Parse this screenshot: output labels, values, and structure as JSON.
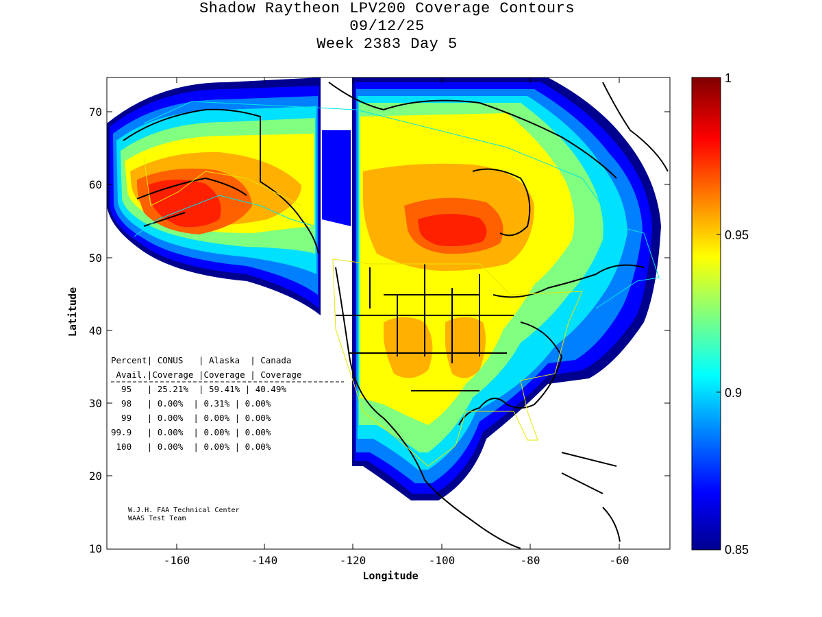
{
  "title": {
    "line1": "Shadow Raytheon LPV200 Coverage Contours",
    "line2": "09/12/25",
    "line3": "Week 2383 Day 5"
  },
  "axes": {
    "xlabel": "Longitude",
    "ylabel": "Latitude",
    "x_ticks": [
      "-160",
      "-140",
      "-120",
      "-100",
      "-80",
      "-60"
    ],
    "y_ticks": [
      "10",
      "20",
      "30",
      "40",
      "50",
      "60",
      "70"
    ]
  },
  "colorbar": {
    "labels": [
      "1",
      "0.95",
      "0.9",
      "0.85"
    ],
    "range": [
      0.85,
      1
    ]
  },
  "stats_table": {
    "header1": "Percent| CONUS   | Alaska  | Canada",
    "header2": " Avail.|Coverage |Coverage | Coverage",
    "rows": [
      "  95   | 25.21%  | 59.41% | 40.49%",
      "  98   | 0.00%  | 0.31% | 0.00%",
      "  99   | 0.00%  | 0.00% | 0.00%",
      "99.9   | 0.00%  | 0.00% | 0.00%",
      " 100   | 0.00%  | 0.00% | 0.00%"
    ]
  },
  "credits": {
    "line1": "W.J.H. FAA Technical Center",
    "line2": "WAAS Test Team"
  },
  "colors": {
    "map_background": "#ffffff",
    "coastline": "#000000",
    "service_boundary_conus": "#e6e600",
    "service_boundary_alaska": "#00e6e6"
  }
}
